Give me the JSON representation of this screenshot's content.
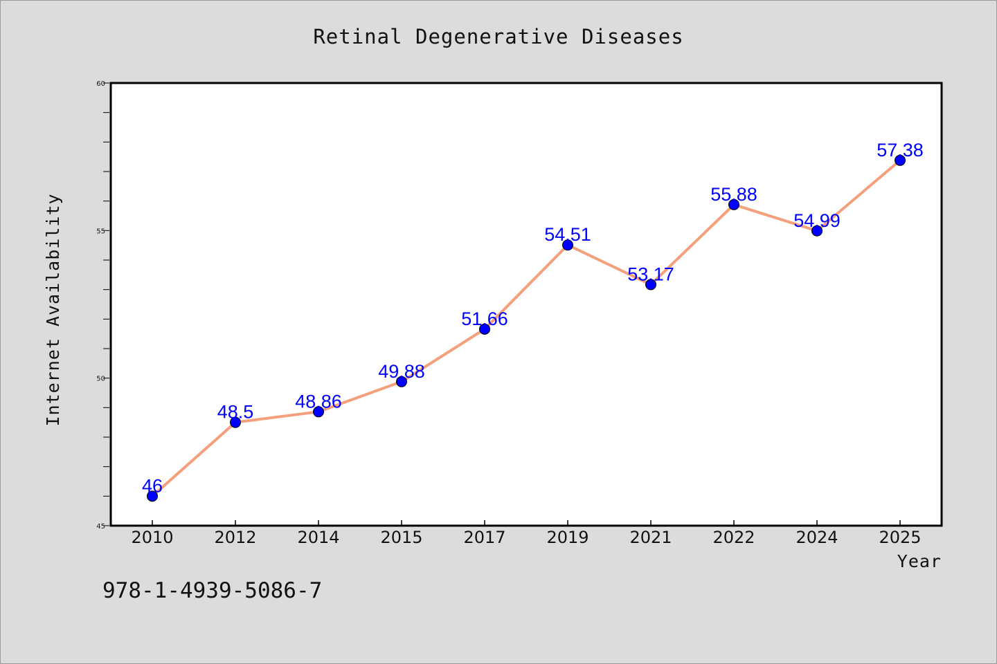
{
  "chart_data": {
    "type": "line",
    "title": "Retinal Degenerative Diseases",
    "xlabel": "Year",
    "ylabel": "Internet Availability",
    "categories": [
      "2010",
      "2012",
      "2014",
      "2015",
      "2017",
      "2019",
      "2021",
      "2022",
      "2024",
      "2025"
    ],
    "series": [
      {
        "values": [
          46,
          48.5,
          48.86,
          49.88,
          51.66,
          54.51,
          53.17,
          55.88,
          54.99,
          57.38
        ],
        "data_labels": [
          "46",
          "48.5",
          "48.86",
          "49.88",
          "51.66",
          "54.51",
          "53.17",
          "55.88",
          "54.99",
          "57.38"
        ]
      }
    ],
    "ylim": [
      45,
      60
    ],
    "y_ticks": [
      "45",
      "50",
      "55",
      "60"
    ],
    "y_minor_step": 1,
    "grid": false,
    "line_color": "#f4a07c",
    "marker_color": "#0000ff",
    "label_color": "#0000ff"
  },
  "footer": {
    "code": "978-1-4939-5086-7"
  }
}
